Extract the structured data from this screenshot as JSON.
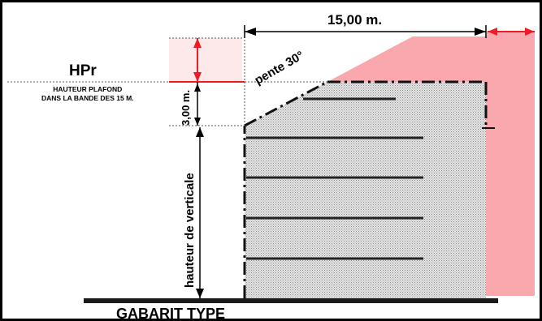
{
  "labels": {
    "hpr": "HPr",
    "hpr_sub_line1": "HAUTEUR PLAFOND",
    "hpr_sub_line2": "DANS LA BANDE DES 15 M.",
    "span": "15,00 m.",
    "three_m": "3,00 m.",
    "pente": "pente 30°",
    "hauteur_verticale": "hauteur de verticale",
    "gabarit": "GABARIT TYPE"
  },
  "colors": {
    "pink_zone": "#f9a9ad",
    "red_dim": "#ee1c25",
    "building_fill": "#d8d8d8",
    "line": "#000000"
  }
}
